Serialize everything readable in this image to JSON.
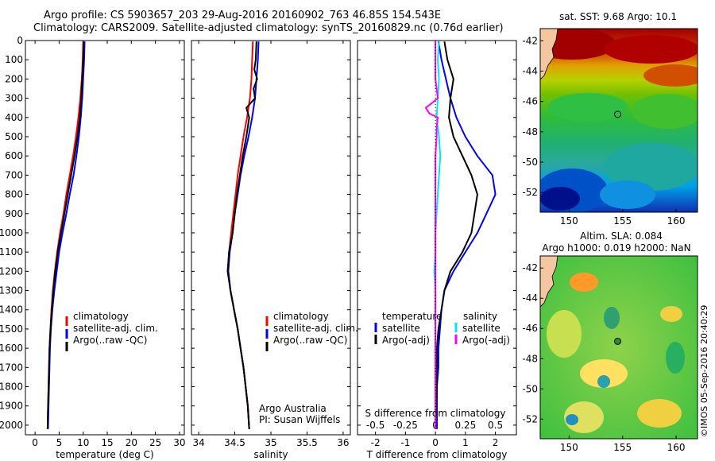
{
  "title": {
    "line1": "Argo profile: CS 5903657_203 29-Aug-2016 20160902_763 46.85S 154.543E",
    "line2": "Climatology: CARS2009. Satellite-adjusted climatology: synTS_20160829.nc (0.76d earlier)"
  },
  "colors": {
    "climatology": "#ff0000",
    "satellite": "#0000ff",
    "argo": "#000000",
    "sat_salinity": "#00e5ff",
    "argo_salinity": "#ff00ff"
  },
  "chart_data": [
    {
      "type": "line",
      "id": "temperature",
      "xlabel": "temperature (deg C)",
      "ylabel": "",
      "xlim": [
        -2,
        31
      ],
      "ylim": [
        2050,
        0
      ],
      "xticks": [
        "0",
        "5",
        "10",
        "15",
        "20",
        "25",
        "30"
      ],
      "xtick_values": [
        0,
        5,
        10,
        15,
        20,
        25,
        30
      ],
      "yticks": [
        "0",
        "100",
        "200",
        "300",
        "400",
        "500",
        "600",
        "700",
        "800",
        "900",
        "1000",
        "1100",
        "1200",
        "1300",
        "1400",
        "1500",
        "1600",
        "1700",
        "1800",
        "1900",
        "2000"
      ],
      "ytick_values": [
        0,
        100,
        200,
        300,
        400,
        500,
        600,
        700,
        800,
        900,
        1000,
        1100,
        1200,
        1300,
        1400,
        1500,
        1600,
        1700,
        1800,
        1900,
        2000
      ],
      "legend": [
        "climatology",
        "satellite-adj. clim.",
        "Argo(..raw -QC)"
      ],
      "series": [
        {
          "name": "climatology",
          "color": "#ff0000",
          "depth": [
            5,
            100,
            200,
            300,
            400,
            500,
            600,
            700,
            800,
            900,
            1000,
            1100,
            1200,
            1300,
            1400,
            1500,
            1600,
            1700,
            1800,
            1900,
            2020
          ],
          "values": [
            10.0,
            9.9,
            9.7,
            9.4,
            9.0,
            8.5,
            7.9,
            7.2,
            6.5,
            5.9,
            5.2,
            4.6,
            4.1,
            3.7,
            3.4,
            3.2,
            3.0,
            2.9,
            2.8,
            2.7,
            2.6
          ]
        },
        {
          "name": "satellite-adj. clim.",
          "color": "#0000ff",
          "depth": [
            5,
            100,
            200,
            300,
            400,
            500,
            600,
            700,
            800,
            900,
            1000,
            1100,
            1200,
            1300,
            1400,
            1500,
            1600,
            1700,
            1800,
            1900,
            2020
          ],
          "values": [
            10.3,
            10.2,
            10.0,
            9.8,
            9.5,
            9.1,
            8.6,
            8.0,
            7.2,
            6.5,
            5.7,
            5.0,
            4.5,
            4.0,
            3.6,
            3.3,
            3.1,
            3.0,
            2.9,
            2.8,
            2.7
          ]
        },
        {
          "name": "Argo(..raw -QC)",
          "color": "#000000",
          "depth": [
            5,
            100,
            200,
            300,
            400,
            500,
            600,
            700,
            800,
            900,
            1000,
            1100,
            1200,
            1300,
            1400,
            1500,
            1600,
            1700,
            1800,
            1900,
            2020
          ],
          "values": [
            10.1,
            10.0,
            9.8,
            9.6,
            9.3,
            8.8,
            8.2,
            7.5,
            6.8,
            6.1,
            5.4,
            4.7,
            4.2,
            3.8,
            3.5,
            3.2,
            3.0,
            2.9,
            2.8,
            2.7,
            2.6
          ]
        }
      ]
    },
    {
      "type": "line",
      "id": "salinity",
      "xlabel": "salinity",
      "xlim": [
        33.9,
        36.1
      ],
      "ylim": [
        2050,
        0
      ],
      "xticks": [
        "34",
        "34.5",
        "35",
        "35.5",
        "36"
      ],
      "xtick_values": [
        34,
        34.5,
        35,
        35.5,
        36
      ],
      "legend": [
        "climatology",
        "satellite-adj. clim.",
        "Argo(..raw -QC)"
      ],
      "annotation": [
        "Argo Australia",
        "PI: Susan Wijffels"
      ],
      "series": [
        {
          "name": "climatology",
          "color": "#ff0000",
          "depth": [
            5,
            100,
            200,
            300,
            400,
            500,
            600,
            700,
            800,
            900,
            1000,
            1100,
            1200,
            1300,
            1400,
            1500,
            1600,
            1700,
            1800,
            1900,
            2020
          ],
          "values": [
            34.75,
            34.74,
            34.73,
            34.71,
            34.67,
            34.62,
            34.58,
            34.54,
            34.51,
            34.48,
            34.45,
            34.42,
            34.41,
            34.44,
            34.49,
            34.54,
            34.58,
            34.62,
            34.65,
            34.68,
            34.7
          ]
        },
        {
          "name": "satellite-adj. clim.",
          "color": "#0000ff",
          "depth": [
            5,
            100,
            200,
            300,
            400,
            500,
            600,
            700,
            800,
            900,
            1000,
            1100,
            1200,
            1300,
            1400,
            1500,
            1600,
            1700,
            1800,
            1900,
            2020
          ],
          "values": [
            34.83,
            34.82,
            34.8,
            34.78,
            34.74,
            34.69,
            34.63,
            34.58,
            34.54,
            34.5,
            34.47,
            34.43,
            34.41,
            34.44,
            34.49,
            34.54,
            34.58,
            34.62,
            34.65,
            34.68,
            34.7
          ]
        },
        {
          "name": "Argo(..raw -QC)",
          "color": "#000000",
          "depth": [
            5,
            100,
            150,
            200,
            250,
            300,
            350,
            400,
            500,
            600,
            700,
            800,
            900,
            1000,
            1100,
            1200,
            1300,
            1400,
            1500,
            1600,
            1700,
            1800,
            1900,
            2020
          ],
          "values": [
            34.8,
            34.79,
            34.77,
            34.81,
            34.76,
            34.78,
            34.66,
            34.7,
            34.66,
            34.61,
            34.57,
            34.53,
            34.5,
            34.47,
            34.42,
            34.4,
            34.44,
            34.49,
            34.54,
            34.58,
            34.62,
            34.65,
            34.68,
            34.7
          ]
        }
      ]
    },
    {
      "type": "line",
      "id": "difference",
      "xlabel": "T difference from climatology",
      "xlim": [
        -2.6,
        2.7
      ],
      "ylim": [
        2050,
        0
      ],
      "xticks": [
        "-2",
        "-1",
        "0",
        "1",
        "2"
      ],
      "xtick_values": [
        -2,
        -1,
        0,
        1,
        2
      ],
      "top_axis_label": "S difference from climatology",
      "top_ticks": [
        "-0.5",
        "-0.25",
        "0",
        "0.25",
        "0.5"
      ],
      "top_tick_values": [
        -0.5,
        -0.25,
        0,
        0.25,
        0.5
      ],
      "legend_headers": [
        "temperature",
        "salinity"
      ],
      "legend": [
        "satellite",
        "Argo(-adj)",
        "satellite",
        "Argo(-adj)"
      ],
      "series": [
        {
          "name": "temperature satellite",
          "color": "#0000ff",
          "depth": [
            5,
            100,
            200,
            300,
            400,
            500,
            600,
            700,
            800,
            900,
            1000,
            1100,
            1200,
            1300,
            1400,
            1500,
            1600,
            1700,
            1800,
            1900,
            2020
          ],
          "values": [
            0.1,
            0.2,
            0.35,
            0.5,
            0.7,
            1.0,
            1.4,
            1.9,
            2.0,
            1.7,
            1.4,
            1.0,
            0.6,
            0.3,
            0.2,
            0.15,
            0.1,
            0.1,
            0.05,
            0.05,
            0.05
          ]
        },
        {
          "name": "temperature Argo(-adj)",
          "color": "#000000",
          "depth": [
            5,
            100,
            200,
            300,
            400,
            500,
            600,
            700,
            800,
            900,
            1000,
            1100,
            1200,
            1300,
            1400,
            1500,
            1600,
            1700,
            1800,
            1900,
            2020
          ],
          "values": [
            0.3,
            0.4,
            0.6,
            0.5,
            0.45,
            0.6,
            0.9,
            1.2,
            1.4,
            1.3,
            1.2,
            0.9,
            0.5,
            0.3,
            0.2,
            0.1,
            0.05,
            0.05,
            0.05,
            0.02,
            0.0
          ]
        },
        {
          "name": "salinity satellite",
          "color": "#00e5ff",
          "depth": [
            5,
            100,
            200,
            300,
            400,
            500,
            600,
            700,
            800,
            900,
            1000,
            1100,
            1200,
            1300,
            1400,
            1500,
            1600,
            1700,
            1800,
            1900,
            2020
          ],
          "values": [
            0.03,
            0.02,
            0.03,
            0.02,
            0.01,
            0.03,
            0.04,
            0.03,
            0.02,
            0.01,
            0.0,
            0.0,
            -0.01,
            0.0,
            0.0,
            0.0,
            0.0,
            0.0,
            0.0,
            0.0,
            0.0
          ]
        },
        {
          "name": "salinity Argo(-adj)",
          "color": "#ff00ff",
          "depth": [
            5,
            100,
            200,
            300,
            350,
            380,
            400,
            450,
            500,
            600,
            700,
            800,
            900,
            1000,
            1100,
            1200,
            1300,
            1400,
            1500,
            1600,
            1700,
            1800,
            1900,
            2020
          ],
          "values": [
            0.0,
            0.0,
            0.0,
            0.02,
            -0.08,
            -0.05,
            0.02,
            0.01,
            0.01,
            0.0,
            0.0,
            0.0,
            0.0,
            0.0,
            0.0,
            0.0,
            0.0,
            0.0,
            0.0,
            0.0,
            0.0,
            0.0,
            0.0,
            0.0
          ]
        }
      ]
    },
    {
      "type": "heatmap",
      "id": "sst-map",
      "title": "sat. SST: 9.68  Argo: 10.1",
      "xticks": [
        "150",
        "155",
        "160"
      ],
      "xtick_values": [
        150,
        155,
        160
      ],
      "yticks": [
        "-42",
        "-44",
        "-46",
        "-48",
        "-50",
        "-52"
      ],
      "ytick_values": [
        -42,
        -44,
        -46,
        -48,
        -50,
        -52
      ],
      "xlim": [
        147.3,
        162
      ],
      "ylim": [
        -53.3,
        -41.2
      ],
      "marker": {
        "lon": 154.54,
        "lat": -46.85
      }
    },
    {
      "type": "heatmap",
      "id": "sla-map",
      "title_line1": "Altim. SLA: 0.084",
      "title_line2": "Argo h1000: 0.019 h2000: NaN",
      "xticks": [
        "150",
        "155",
        "160"
      ],
      "xtick_values": [
        150,
        155,
        160
      ],
      "yticks": [
        "-42",
        "-44",
        "-46",
        "-48",
        "-50",
        "-52"
      ],
      "ytick_values": [
        -42,
        -44,
        -46,
        -48,
        -50,
        -52
      ],
      "xlim": [
        147.3,
        162
      ],
      "ylim": [
        -53.3,
        -41.2
      ],
      "marker": {
        "lon": 154.54,
        "lat": -46.85
      }
    }
  ],
  "credit": "©IMOS 05-Sep-2016 20:40:29"
}
